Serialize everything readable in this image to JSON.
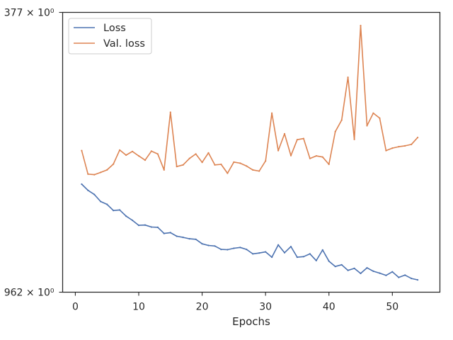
{
  "chart_data": {
    "type": "line",
    "xlabel": "Epochs",
    "ylabel": "",
    "xlim": [
      -2,
      57.5
    ],
    "xticks": [
      0,
      10,
      20,
      30,
      40,
      50
    ],
    "ylim": [
      0,
      1
    ],
    "y_scale_note": "log",
    "ytick_labels": [
      {
        "label": "962 × 10⁰",
        "value": 0
      },
      {
        "label": "377 × 10⁰",
        "value": 1
      }
    ],
    "grid": false,
    "legend_position": "upper-left",
    "x": [
      1,
      2,
      3,
      4,
      5,
      6,
      7,
      8,
      9,
      10,
      11,
      12,
      13,
      14,
      15,
      16,
      17,
      18,
      19,
      20,
      21,
      22,
      23,
      24,
      25,
      26,
      27,
      28,
      29,
      30,
      31,
      32,
      33,
      34,
      35,
      36,
      37,
      38,
      39,
      40,
      41,
      42,
      43,
      44,
      45,
      46,
      47,
      48,
      49,
      50,
      51,
      52,
      53,
      54
    ],
    "series": [
      {
        "name": "Loss",
        "color": "#4c72b0",
        "values": [
          0.386,
          0.364,
          0.349,
          0.324,
          0.314,
          0.292,
          0.294,
          0.272,
          0.257,
          0.239,
          0.24,
          0.233,
          0.232,
          0.21,
          0.213,
          0.2,
          0.196,
          0.191,
          0.189,
          0.173,
          0.167,
          0.165,
          0.153,
          0.152,
          0.157,
          0.16,
          0.153,
          0.137,
          0.14,
          0.144,
          0.125,
          0.169,
          0.141,
          0.163,
          0.125,
          0.127,
          0.137,
          0.113,
          0.151,
          0.111,
          0.092,
          0.098,
          0.078,
          0.085,
          0.067,
          0.087,
          0.075,
          0.068,
          0.06,
          0.073,
          0.053,
          0.061,
          0.049,
          0.044
        ]
      },
      {
        "name": "Val. loss",
        "color": "#dd8452",
        "values": [
          0.506,
          0.422,
          0.42,
          0.428,
          0.437,
          0.458,
          0.508,
          0.49,
          0.503,
          0.487,
          0.472,
          0.504,
          0.494,
          0.437,
          0.643,
          0.449,
          0.455,
          0.478,
          0.494,
          0.464,
          0.498,
          0.455,
          0.457,
          0.425,
          0.465,
          0.461,
          0.451,
          0.437,
          0.433,
          0.469,
          0.64,
          0.506,
          0.566,
          0.488,
          0.545,
          0.549,
          0.478,
          0.487,
          0.483,
          0.457,
          0.574,
          0.615,
          0.768,
          0.546,
          0.953,
          0.595,
          0.64,
          0.622,
          0.506,
          0.515,
          0.52,
          0.523,
          0.528,
          0.553
        ]
      }
    ]
  }
}
